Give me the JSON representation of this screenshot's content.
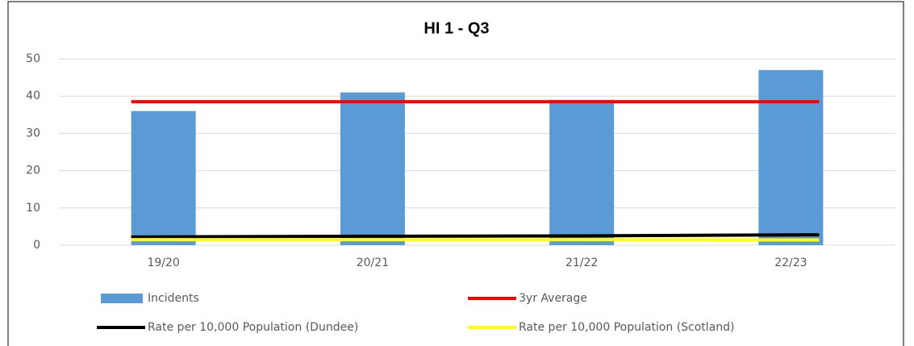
{
  "chart_data": {
    "type": "bar",
    "title": "HI 1 - Q3",
    "categories": [
      "19/20",
      "20/21",
      "21/22",
      "22/23"
    ],
    "series": [
      {
        "name": "Incidents",
        "type": "bar",
        "color": "#5b9bd5",
        "values": [
          36,
          41,
          39,
          47
        ]
      },
      {
        "name": "3yr Average",
        "type": "line",
        "color": "#ff0000",
        "values": [
          38.5,
          38.5,
          38.5,
          38.5
        ]
      },
      {
        "name": "Rate per 10,000 Population (Dundee)",
        "type": "line",
        "color": "#000000",
        "values": [
          2.2,
          2.4,
          2.5,
          2.8
        ]
      },
      {
        "name": "Rate per 10,000 Population (Scotland)",
        "type": "line",
        "color": "#ffff00",
        "values": [
          1.5,
          1.5,
          1.5,
          1.4
        ]
      }
    ],
    "ylim": [
      0,
      50
    ],
    "yticks": [
      0,
      10,
      20,
      30,
      40,
      50
    ],
    "grid": true,
    "legend": "bottom"
  }
}
